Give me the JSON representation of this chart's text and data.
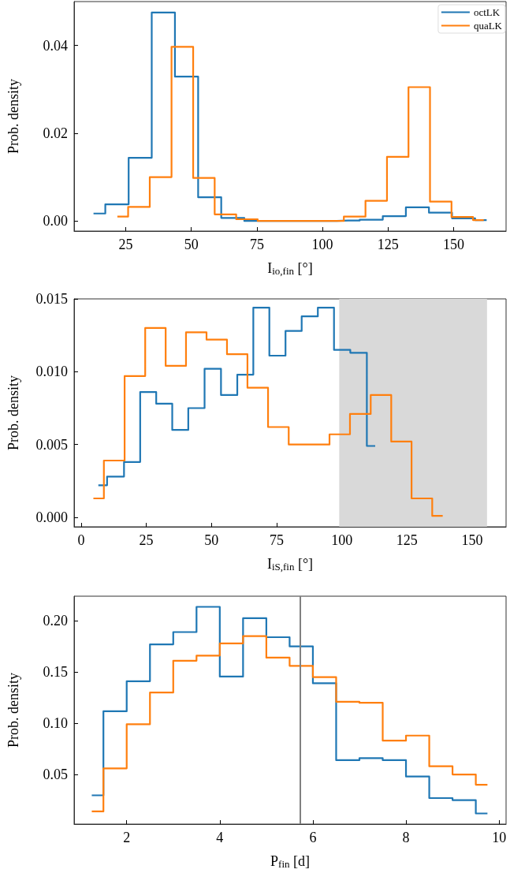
{
  "chart_data": [
    {
      "type": "step",
      "xlabel": "I$_{io,fin}$ [°]",
      "ylabel": "Prob. density",
      "xlim": [
        5.3,
        170
      ],
      "ylim": [
        -0.0023,
        0.05
      ],
      "xticks": [
        25,
        50,
        75,
        100,
        125,
        150
      ],
      "yticks": [
        {
          "value": 0,
          "label": "0.00"
        },
        {
          "value": 0.02,
          "label": "0.02"
        },
        {
          "value": 0.04,
          "label": "0.04"
        }
      ],
      "grid": false,
      "legend": "top right",
      "series": [
        {
          "name": "octLK",
          "color": "#1f77b4",
          "x": [
            12.7,
            21.7,
            30.5,
            39.3,
            48.2,
            57,
            65.8,
            74.6,
            83.4,
            92.2,
            101,
            109.8,
            118.6,
            127.4,
            136.2,
            145,
            153.8,
            162.6
          ],
          "values": [
            0.0017,
            0.0038,
            0.0144,
            0.0475,
            0.0329,
            0.0054,
            0.0007,
            0,
            0,
            0,
            0,
            0.0001,
            0.0003,
            0.0011,
            0.0031,
            0.0019,
            0.0006,
            0.0002
          ]
        },
        {
          "name": "quaLK",
          "color": "#ff7f0e",
          "x": [
            21.8,
            30,
            38.3,
            46.6,
            54.8,
            63,
            71.2,
            79.4,
            87.6,
            95.8,
            104,
            112.3,
            120.5,
            128.7,
            136.9,
            145.1,
            153.3,
            161.5
          ],
          "values": [
            0.001,
            0.0032,
            0.01,
            0.0397,
            0.0098,
            0.0015,
            0.0004,
            0,
            0,
            0,
            0,
            0.001,
            0.0046,
            0.0146,
            0.0305,
            0.0044,
            0.0009,
            0.0002
          ]
        }
      ]
    },
    {
      "type": "step",
      "xlabel": "I$_{iS,fin}$ [°]",
      "ylabel": "Prob. density",
      "xlim": [
        -2.7,
        163
      ],
      "ylim": [
        -0.00065,
        0.015
      ],
      "xticks": [
        0,
        25,
        50,
        75,
        100,
        125,
        150
      ],
      "yticks": [
        {
          "value": 0,
          "label": "0.000"
        },
        {
          "value": 0.005,
          "label": "0.005"
        },
        {
          "value": 0.01,
          "label": "0.010"
        },
        {
          "value": 0.015,
          "label": "0.015"
        }
      ],
      "grid": false,
      "bands": [
        {
          "axis": "x",
          "from": 99,
          "to": 155.7,
          "color": "#d9d9d9"
        }
      ],
      "series": [
        {
          "color": "#1f77b4",
          "x": [
            6.6,
            13.3,
            19.6,
            25.7,
            31.9,
            38,
            44.2,
            50.5,
            56.8,
            63,
            69.1,
            75.3,
            81.5,
            87.7,
            93.9,
            100.1,
            106.4,
            112.8
          ],
          "values": [
            0.0022,
            0.0028,
            0.0038,
            0.0086,
            0.0078,
            0.006,
            0.0075,
            0.0102,
            0.0084,
            0.0098,
            0.0144,
            0.0111,
            0.0128,
            0.0138,
            0.0144,
            0.0115,
            0.0113,
            0.0049
          ]
        },
        {
          "color": "#ff7f0e",
          "x": [
            4.7,
            12.75,
            20.6,
            28.55,
            36.3,
            44.15,
            52.05,
            59.85,
            67.75,
            75.65,
            83.6,
            91.4,
            99.15,
            107.1,
            115.05,
            122.85,
            130.65,
            138.7
          ],
          "values": [
            0.0013,
            0.0039,
            0.0097,
            0.013,
            0.0104,
            0.0127,
            0.0122,
            0.0112,
            0.0089,
            0.0062,
            0.005,
            0.005,
            0.0057,
            0.0071,
            0.0084,
            0.0052,
            0.0013,
            0.0001
          ]
        }
      ]
    },
    {
      "type": "step",
      "xlabel": "P$_{fin}$ [d]",
      "ylabel": "Prob. density",
      "xlim": [
        0.87,
        10.15
      ],
      "ylim": [
        0.0016,
        0.224
      ],
      "xticks": [
        2,
        4,
        6,
        8,
        10
      ],
      "yticks": [
        0.05,
        {
          "value": 0.1,
          "label": "0.10"
        },
        0.15,
        {
          "value": 0.2,
          "label": "0.20"
        }
      ],
      "grid": false,
      "ref_lines": [
        {
          "axis": "x",
          "value": 5.72,
          "color": "#808080"
        }
      ],
      "series": [
        {
          "color": "#1f77b4",
          "x": [
            1.25,
            1.75,
            2.25,
            2.75,
            3.25,
            3.75,
            4.25,
            4.75,
            5.25,
            5.75,
            6.25,
            6.75,
            7.25,
            7.75,
            8.25,
            8.75,
            9.25,
            9.75
          ],
          "values": [
            0.0297,
            0.1117,
            0.141,
            0.177,
            0.189,
            0.2136,
            0.1456,
            0.2025,
            0.184,
            0.175,
            0.139,
            0.064,
            0.066,
            0.064,
            0.048,
            0.027,
            0.025,
            0.012
          ]
        },
        {
          "color": "#ff7f0e",
          "x": [
            1.25,
            1.75,
            2.25,
            2.75,
            3.25,
            3.75,
            4.25,
            4.75,
            5.25,
            5.75,
            6.25,
            6.75,
            7.25,
            7.75,
            8.25,
            8.75,
            9.25,
            9.75
          ],
          "values": [
            0.014,
            0.056,
            0.099,
            0.13,
            0.161,
            0.166,
            0.178,
            0.185,
            0.164,
            0.156,
            0.145,
            0.121,
            0.12,
            0.083,
            0.088,
            0.058,
            0.05,
            0.04
          ]
        }
      ]
    }
  ]
}
